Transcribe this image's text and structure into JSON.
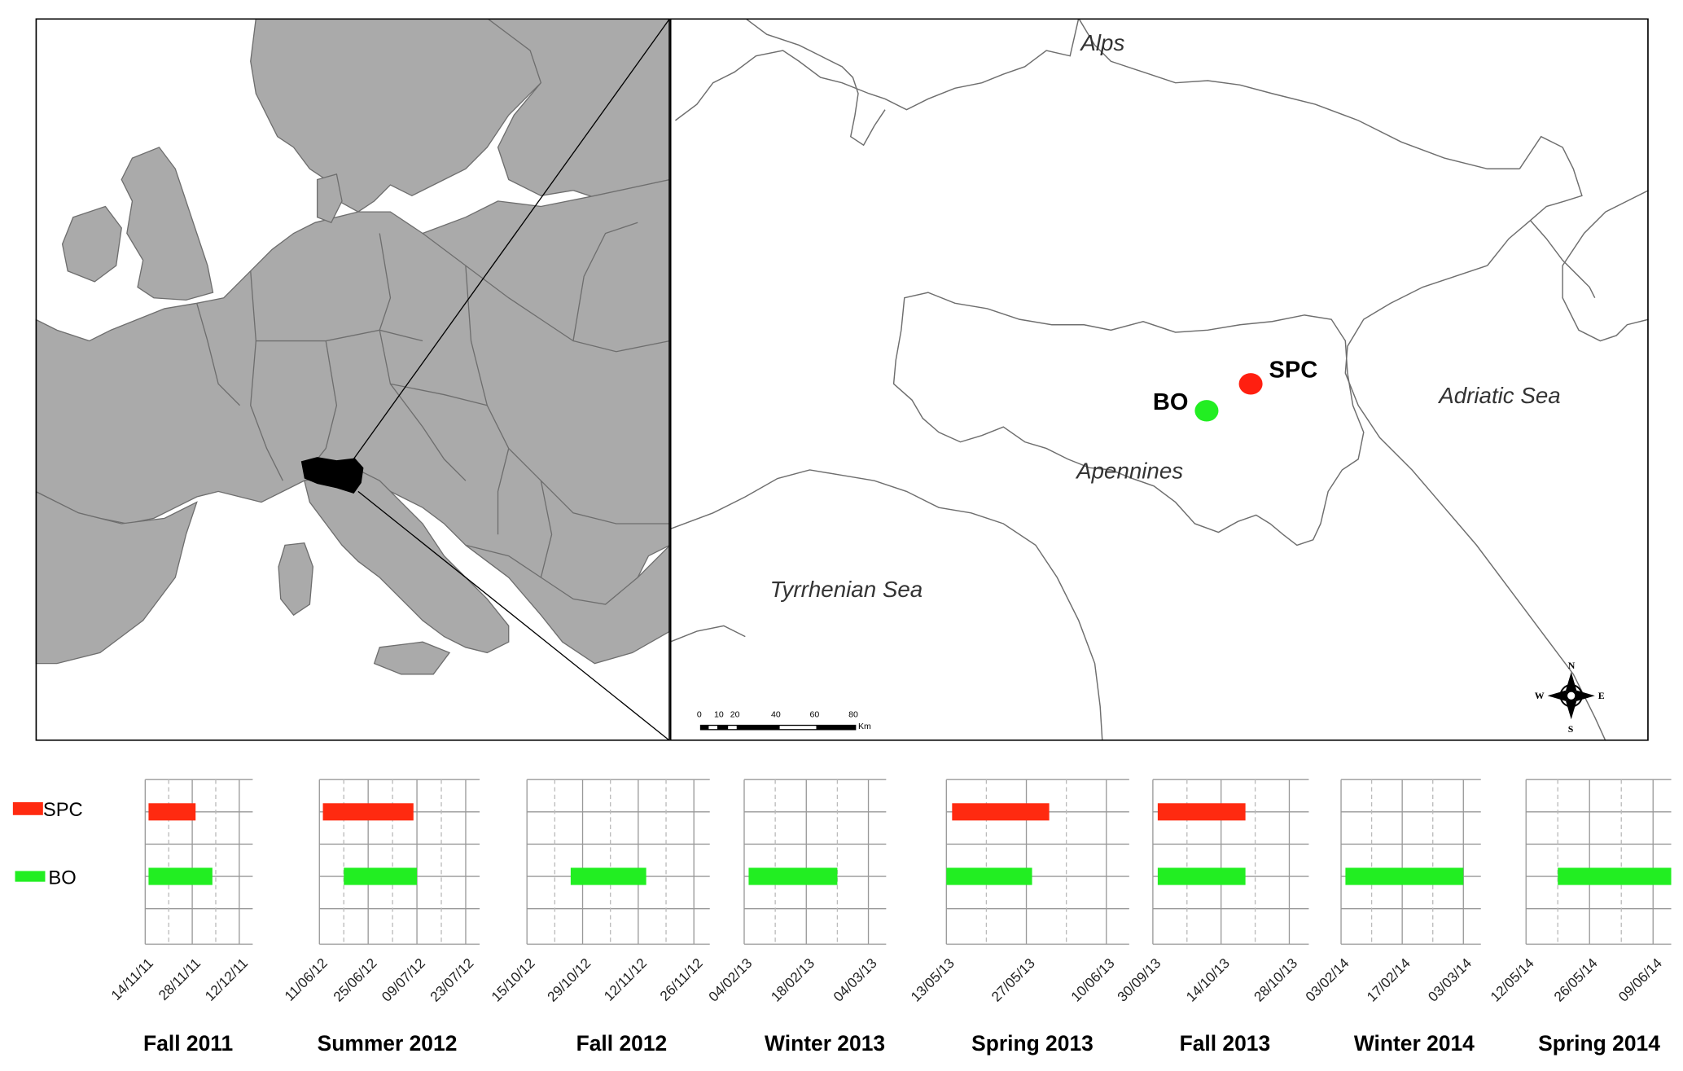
{
  "map": {
    "labels": {
      "alps": "Alps",
      "adriatic": "Adriatic Sea",
      "apennines": "Apennines",
      "tyrrhenian": "Tyrrhenian Sea"
    },
    "sites": [
      {
        "name": "SPC",
        "color": "#ff1f10"
      },
      {
        "name": "BO",
        "color": "#22ee22"
      }
    ],
    "scale_bar": {
      "ticks": [
        "0",
        "10",
        "20",
        "40",
        "60",
        "80"
      ],
      "unit": "Km"
    },
    "compass": {
      "n": "N",
      "s": "S",
      "e": "E",
      "w": "W"
    },
    "colors": {
      "land": "#aaaaaa",
      "border": "#6e6e6e",
      "region": "#000000"
    }
  },
  "legend": [
    {
      "name": "SPC",
      "color": "#ff2a10"
    },
    {
      "name": "BO",
      "color": "#22ee22"
    }
  ],
  "chart_data": {
    "type": "bar",
    "subtype": "gantt",
    "rows": [
      "SPC",
      "BO"
    ],
    "panels": [
      {
        "title": "Fall 2011",
        "ticks": [
          "14/11/11",
          "28/11/11",
          "12/12/11"
        ],
        "range": [
          "2011-11-14",
          "2011-12-16"
        ],
        "bars": {
          "SPC": [
            "2011-11-15",
            "2011-11-29"
          ],
          "BO": [
            "2011-11-15",
            "2011-12-04"
          ]
        }
      },
      {
        "title": "Summer 2012",
        "ticks": [
          "11/06/12",
          "25/06/12",
          "09/07/12",
          "23/07/12"
        ],
        "range": [
          "2012-06-11",
          "2012-07-27"
        ],
        "bars": {
          "SPC": [
            "2012-06-12",
            "2012-07-08"
          ],
          "BO": [
            "2012-06-18",
            "2012-07-09"
          ]
        }
      },
      {
        "title": "Fall 2012",
        "ticks": [
          "15/10/12",
          "29/10/12",
          "12/11/12",
          "26/11/12"
        ],
        "range": [
          "2012-10-15",
          "2012-11-30"
        ],
        "bars": {
          "BO": [
            "2012-10-26",
            "2012-11-14"
          ]
        }
      },
      {
        "title": "Winter 2013",
        "ticks": [
          "04/02/13",
          "18/02/13",
          "04/03/13"
        ],
        "range": [
          "2013-02-04",
          "2013-03-08"
        ],
        "bars": {
          "BO": [
            "2013-02-05",
            "2013-02-25"
          ]
        }
      },
      {
        "title": "Spring 2013",
        "ticks": [
          "13/05/13",
          "27/05/13",
          "10/06/13"
        ],
        "range": [
          "2013-05-13",
          "2013-06-14"
        ],
        "bars": {
          "SPC": [
            "2013-05-14",
            "2013-05-31"
          ],
          "BO": [
            "2013-05-13",
            "2013-05-28"
          ]
        }
      },
      {
        "title": "Fall 2013",
        "ticks": [
          "30/09/13",
          "14/10/13",
          "28/10/13"
        ],
        "range": [
          "2013-09-30",
          "2013-11-01"
        ],
        "bars": {
          "SPC": [
            "2013-10-01",
            "2013-10-19"
          ],
          "BO": [
            "2013-10-01",
            "2013-10-19"
          ]
        }
      },
      {
        "title": "Winter 2014",
        "ticks": [
          "03/02/14",
          "17/02/14",
          "03/03/14"
        ],
        "range": [
          "2014-02-03",
          "2014-03-07"
        ],
        "bars": {
          "BO": [
            "2014-02-04",
            "2014-03-03"
          ]
        }
      },
      {
        "title": "Spring 2014",
        "ticks": [
          "12/05/14",
          "26/05/14",
          "09/06/14"
        ],
        "range": [
          "2014-05-12",
          "2014-06-13"
        ],
        "bars": {
          "BO": [
            "2014-05-19",
            "2014-06-13"
          ]
        }
      }
    ]
  }
}
